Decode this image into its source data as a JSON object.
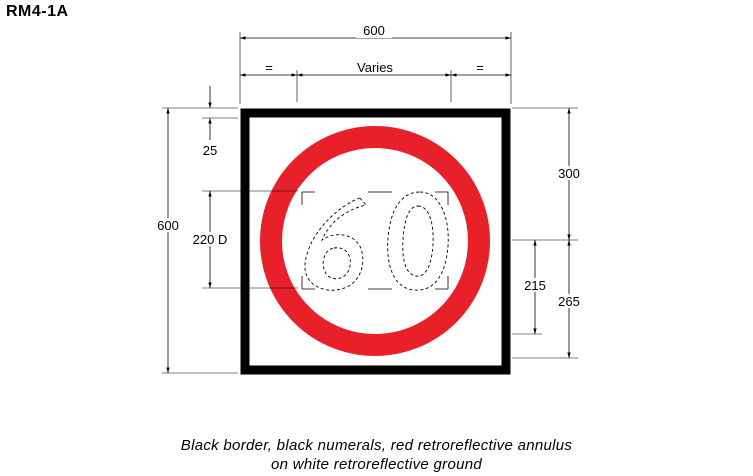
{
  "sign_code": "RM4-1A",
  "sign": {
    "numerals": "60",
    "border_color": "#000000",
    "annulus_color": "#e8202a",
    "ground_color": "#ffffff",
    "numeral_color": "#000000"
  },
  "dimensions": {
    "overall_width": "600",
    "equal_left": "=",
    "numeral_width": "Varies",
    "equal_right": "=",
    "overall_height": "600",
    "border": "25",
    "numeral_height": "220 D",
    "to_center": "300",
    "numeral_top_to_bottom": "215",
    "center_to_bottom": "265"
  },
  "caption": {
    "line1": "Black border, black numerals, red retroreflective annulus",
    "line2": "on white retroreflective ground"
  }
}
